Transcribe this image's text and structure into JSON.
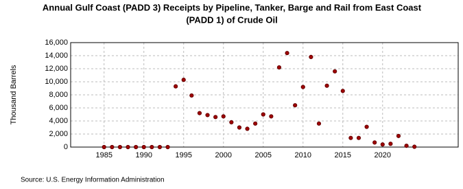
{
  "chart_data": {
    "type": "scatter",
    "title": [
      "Annual Gulf Coast (PADD 3) Receipts by Pipeline, Tanker, Barge and Rail from East Coast",
      "(PADD 1) of Crude Oil"
    ],
    "y_label": "Thousand Barrels",
    "source": "Source: U.S. Energy Information Administration",
    "color": "#a00000",
    "grid": true,
    "xlim": [
      1980.8,
      2029.5
    ],
    "xticks": [
      1985,
      1990,
      1995,
      2000,
      2005,
      2010,
      2015,
      2020
    ],
    "ylim": [
      0,
      16000
    ],
    "yticks": [
      {
        "value": 0,
        "label": "0"
      },
      {
        "value": 2000,
        "label": "2,000"
      },
      {
        "value": 4000,
        "label": "4,000"
      },
      {
        "value": 6000,
        "label": "6,000"
      },
      {
        "value": 8000,
        "label": "8,000"
      },
      {
        "value": 10000,
        "label": "10,000"
      },
      {
        "value": 12000,
        "label": "12,000"
      },
      {
        "value": 14000,
        "label": "14,000"
      },
      {
        "value": 16000,
        "label": "16,000"
      }
    ],
    "x": [
      1985,
      1986,
      1987,
      1988,
      1989,
      1990,
      1991,
      1992,
      1993,
      1994,
      1995,
      1996,
      1997,
      1998,
      1999,
      2000,
      2001,
      2002,
      2003,
      2004,
      2005,
      2006,
      2007,
      2008,
      2009,
      2010,
      2011,
      2012,
      2013,
      2014,
      2015,
      2016,
      2017,
      2018,
      2019,
      2020,
      2021,
      2022,
      2023,
      2024
    ],
    "values": [
      0,
      0,
      0,
      0,
      0,
      0,
      0,
      0,
      0,
      9300,
      10300,
      7900,
      5200,
      4900,
      4600,
      4700,
      3800,
      3000,
      2800,
      3600,
      5000,
      4700,
      12200,
      14400,
      6400,
      9200,
      13800,
      3600,
      9400,
      11600,
      8600,
      1400,
      1400,
      3100,
      700,
      400,
      500,
      1700,
      200,
      50
    ]
  }
}
